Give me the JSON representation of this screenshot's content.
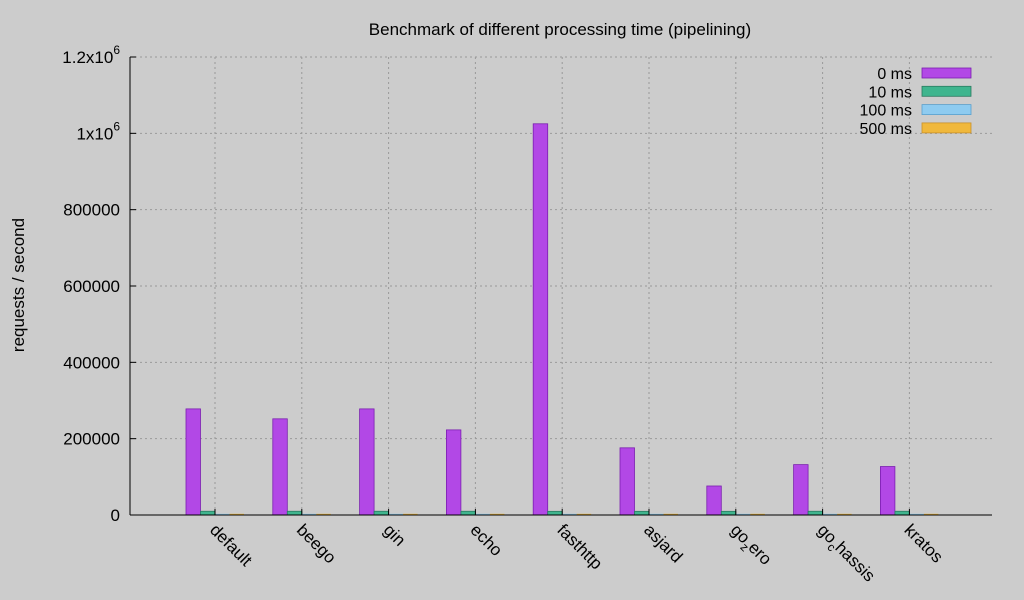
{
  "chart_data": {
    "type": "bar",
    "title": "Benchmark of different processing time (pipelining)",
    "xlabel": "",
    "ylabel": "requests / second",
    "ylim": [
      0,
      1200000
    ],
    "yticks": [
      {
        "value": 0,
        "base": "0",
        "sup": ""
      },
      {
        "value": 200000,
        "base": "200000",
        "sup": ""
      },
      {
        "value": 400000,
        "base": "400000",
        "sup": ""
      },
      {
        "value": 600000,
        "base": "600000",
        "sup": ""
      },
      {
        "value": 800000,
        "base": "800000",
        "sup": ""
      },
      {
        "value": 1000000,
        "base": "1x10",
        "sup": "6"
      },
      {
        "value": 1200000,
        "base": "1.2x10",
        "sup": "6"
      }
    ],
    "categories": [
      {
        "base": "default",
        "sub": "",
        "rest": ""
      },
      {
        "base": "beego",
        "sub": "",
        "rest": ""
      },
      {
        "base": "gin",
        "sub": "",
        "rest": ""
      },
      {
        "base": "echo",
        "sub": "",
        "rest": ""
      },
      {
        "base": "fasthttp",
        "sub": "",
        "rest": ""
      },
      {
        "base": "asjard",
        "sub": "",
        "rest": ""
      },
      {
        "base": "go",
        "sub": "z",
        "rest": "ero"
      },
      {
        "base": "go",
        "sub": "c",
        "rest": "hassis"
      },
      {
        "base": "kratos",
        "sub": "",
        "rest": ""
      }
    ],
    "series": [
      {
        "name": "0 ms",
        "color": "#b248e6",
        "values": [
          278000,
          252000,
          278000,
          223000,
          1025000,
          176000,
          76000,
          132000,
          127000
        ]
      },
      {
        "name": "10 ms",
        "color": "#3fb58e",
        "values": [
          9800,
          9800,
          9800,
          9800,
          9600,
          9600,
          9600,
          9800,
          9800
        ]
      },
      {
        "name": "100 ms",
        "color": "#8ecbf0",
        "values": [
          1000,
          1000,
          1000,
          1000,
          1000,
          1000,
          1000,
          1000,
          1000
        ]
      },
      {
        "name": "500 ms",
        "color": "#f0b83c",
        "values": [
          200,
          200,
          200,
          200,
          200,
          200,
          200,
          200,
          200
        ]
      }
    ],
    "grid": true,
    "legend_position": "top-right"
  }
}
